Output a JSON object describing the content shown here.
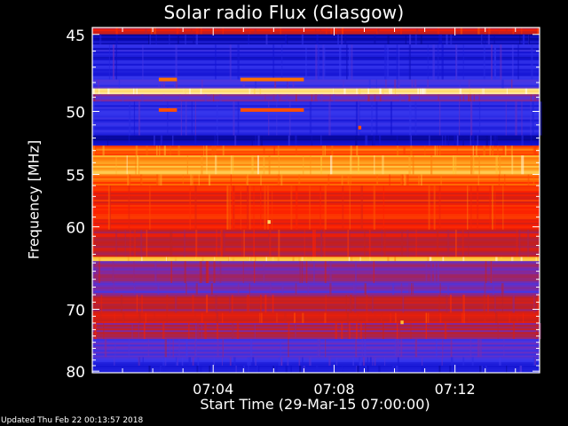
{
  "chart_data": {
    "type": "heatmap",
    "title": "Solar radio Flux (Glasgow)",
    "xlabel": "Start Time (29-Mar-15 07:00:00)",
    "ylabel": "Frequency [MHz]",
    "y_ticks": [
      45,
      50,
      55,
      60,
      70,
      80
    ],
    "x_ticks": [
      "07:04",
      "07:08",
      "07:12"
    ],
    "xlim_minutes": [
      0.0,
      14.8
    ],
    "x_tick_minutes": [
      4,
      8,
      12
    ],
    "ylim_mhz": [
      44.6,
      80.3
    ],
    "y_scale": "reciprocal",
    "colormap": [
      "#000060",
      "#1010d0",
      "#3a3af0",
      "#7a2ab0",
      "#c02020",
      "#ff2000",
      "#ff7000",
      "#ffd040",
      "#ffffff"
    ],
    "bands": [
      {
        "from": 44.6,
        "to": 45.0,
        "level": 0.55
      },
      {
        "from": 45.0,
        "to": 45.6,
        "level": 0.1
      },
      {
        "from": 45.6,
        "to": 47.8,
        "level": 0.18
      },
      {
        "from": 47.8,
        "to": 48.4,
        "level": 0.25
      },
      {
        "from": 48.4,
        "to": 48.8,
        "level": 0.95
      },
      {
        "from": 48.8,
        "to": 49.3,
        "level": 0.35
      },
      {
        "from": 49.3,
        "to": 51.8,
        "level": 0.2
      },
      {
        "from": 51.8,
        "to": 52.6,
        "level": 0.1
      },
      {
        "from": 52.6,
        "to": 53.4,
        "level": 0.72
      },
      {
        "from": 53.4,
        "to": 55.0,
        "level": 0.82
      },
      {
        "from": 55.0,
        "to": 56.0,
        "level": 0.7
      },
      {
        "from": 56.0,
        "to": 60.3,
        "level": 0.6
      },
      {
        "from": 60.3,
        "to": 63.3,
        "level": 0.52
      },
      {
        "from": 63.3,
        "to": 63.8,
        "level": 0.85
      },
      {
        "from": 63.8,
        "to": 66.5,
        "level": 0.4
      },
      {
        "from": 66.5,
        "to": 68.0,
        "level": 0.33
      },
      {
        "from": 68.0,
        "to": 70.5,
        "level": 0.48
      },
      {
        "from": 70.5,
        "to": 72.0,
        "level": 0.55
      },
      {
        "from": 72.0,
        "to": 74.5,
        "level": 0.45
      },
      {
        "from": 74.5,
        "to": 77.5,
        "level": 0.3
      },
      {
        "from": 77.5,
        "to": 79.0,
        "level": 0.22
      },
      {
        "from": 79.0,
        "to": 80.3,
        "level": 0.12
      }
    ],
    "features": [
      {
        "t0": 2.2,
        "t1": 2.8,
        "f": 47.8,
        "level": 0.75
      },
      {
        "t0": 2.2,
        "t1": 2.8,
        "f": 49.9,
        "level": 0.7
      },
      {
        "t0": 4.9,
        "t1": 7.0,
        "f": 47.8,
        "level": 0.75
      },
      {
        "t0": 4.9,
        "t1": 7.0,
        "f": 49.9,
        "level": 0.7
      },
      {
        "t0": 5.8,
        "t1": 5.9,
        "f": 59.5,
        "level": 0.9
      },
      {
        "t0": 8.8,
        "t1": 8.9,
        "f": 51.2,
        "level": 0.7
      },
      {
        "t0": 10.2,
        "t1": 10.3,
        "f": 71.9,
        "level": 0.85
      }
    ]
  },
  "footer": "Updated Thu Feb 22 00:13:57 2018"
}
